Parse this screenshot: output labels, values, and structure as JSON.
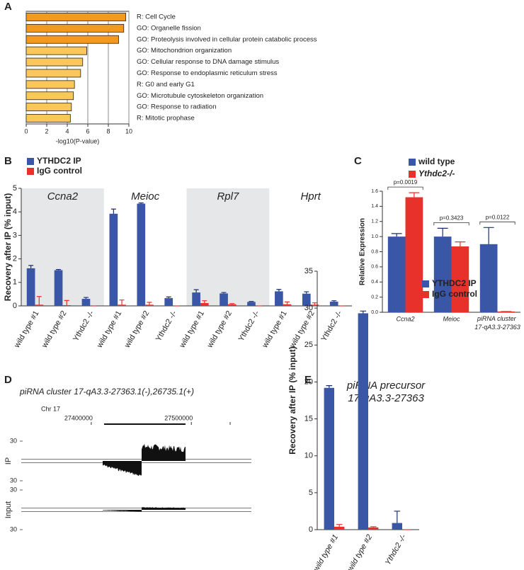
{
  "chart_data": [
    {
      "type": "hbar",
      "label": "A",
      "categories": [
        "R: Cell Cycle",
        "GO: Organelle fission",
        "GO: Proteolysis involved in cellular protein catabolic process",
        "GO: Mitochondrion organization",
        "GO: Cellular response to DNA damage stimulus",
        "GO: Response to endoplasmic reticulum stress",
        "R: G0 and early G1",
        "GO: Microtubule cytoskeleton organization",
        "GO: Response to radiation",
        "R: Mitotic prophase"
      ],
      "values": [
        9.7,
        9.5,
        9.0,
        5.9,
        5.5,
        5.3,
        4.7,
        4.6,
        4.4,
        4.3
      ],
      "colors": [
        "#f39a1e",
        "#f39a1e",
        "#f39a1e",
        "#fbc75a",
        "#fbc75a",
        "#fbc75a",
        "#fbc75a",
        "#fbc75a",
        "#fbc75a",
        "#fbc75a"
      ],
      "xlabel": "-log10(P-value)",
      "xlim": [
        0,
        10
      ],
      "xticks": [
        0,
        2,
        4,
        6,
        8,
        10
      ],
      "grid": true
    },
    {
      "type": "grouped_bar",
      "label": "B",
      "groups": [
        "Ccna2",
        "Meioc",
        "Rpl7",
        "Hprt"
      ],
      "categories": [
        "wild type #1",
        "wild type #2",
        "Ythdc2 -/-",
        "wild type #1",
        "wild type #2",
        "Ythdc2 -/-",
        "wild type #1",
        "wild type #2",
        "Ythdc2 -/-",
        "wild type #1",
        "wild type #2",
        "Ythdc2 -/-"
      ],
      "series": [
        {
          "name": "YTHDC2 IP",
          "color": "#3a56a7",
          "values": [
            1.6,
            1.52,
            0.3,
            3.92,
            4.35,
            0.33,
            0.57,
            0.53,
            0.17,
            0.62,
            0.52,
            0.18
          ],
          "errors": [
            0.12,
            0.03,
            0.06,
            0.2,
            0.03,
            0.05,
            0.12,
            0.04,
            0.02,
            0.08,
            0.08,
            0.04
          ]
        },
        {
          "name": "IgG control",
          "color": "#e8312a",
          "values": [
            0.05,
            0.03,
            0,
            0.05,
            0.05,
            0,
            0.12,
            0.07,
            0,
            0.07,
            0.05,
            0
          ],
          "errors": [
            0.35,
            0.2,
            0,
            0.2,
            0.1,
            0,
            0.1,
            0.03,
            0,
            0.1,
            0.08,
            0
          ]
        }
      ],
      "ylabel": "Recovery after IP (% input)",
      "ylim": [
        0,
        5
      ],
      "yticks": [
        0,
        1,
        2,
        3,
        4,
        5
      ]
    },
    {
      "type": "grouped_bar",
      "label": "C",
      "categories": [
        "Ccna2",
        "Meioc",
        "piRNA cluster 17-qA3.3-27363"
      ],
      "series": [
        {
          "name": "wild type",
          "color": "#3a56a7",
          "values": [
            1.0,
            1.0,
            0.9
          ],
          "errors": [
            0.04,
            0.11,
            0.22
          ]
        },
        {
          "name": "Ythdc2-/-",
          "color": "#e8312a",
          "values": [
            1.52,
            0.87,
            0.01
          ],
          "errors": [
            0.06,
            0.06,
            0
          ]
        }
      ],
      "annotations": [
        "p=0.0019",
        "p=0.3423",
        "p=0.0122"
      ],
      "ylabel": "Relative Expression",
      "ylim": [
        0,
        1.6
      ],
      "yticks": [
        {
          "value": 0,
          "label": "0.0"
        },
        0.2,
        0.4,
        0.6,
        0.8,
        {
          "value": 1,
          "label": "1.0"
        },
        1.2,
        1.4,
        1.6
      ]
    },
    {
      "type": "track",
      "label": "D",
      "title": "piRNA cluster 17-qA3.3-27363.1(-),26735.1(+)",
      "chromosome": "Chr 17",
      "xlim": [
        27330000,
        27560000
      ],
      "xticks": [
        27400000,
        27500000
      ],
      "tracks": [
        "IP",
        "Input"
      ],
      "ylim": [
        -30,
        30
      ],
      "yticks": [
        {
          "value": -30,
          "label": "30"
        },
        30
      ]
    },
    {
      "type": "grouped_bar",
      "label": "E",
      "title": "piRNA precursor",
      "subtitle": "17-qA3.3-27363",
      "categories": [
        "wild type #1",
        "wild type #2",
        "Ythdc2 -/-"
      ],
      "series": [
        {
          "name": "YTHDC2 IP",
          "color": "#3a56a7",
          "values": [
            19.2,
            29.3,
            0.9
          ],
          "errors": [
            0.3,
            0.3,
            1.6
          ]
        },
        {
          "name": "IgG control",
          "color": "#e8312a",
          "values": [
            0.4,
            0.3,
            0
          ],
          "errors": [
            0.3,
            0.1,
            0
          ]
        }
      ],
      "ylabel": "Recovery after IP (% input)",
      "ylim": [
        0,
        35
      ],
      "yticks": [
        0,
        5,
        10,
        15,
        20,
        25,
        30,
        35
      ]
    }
  ]
}
